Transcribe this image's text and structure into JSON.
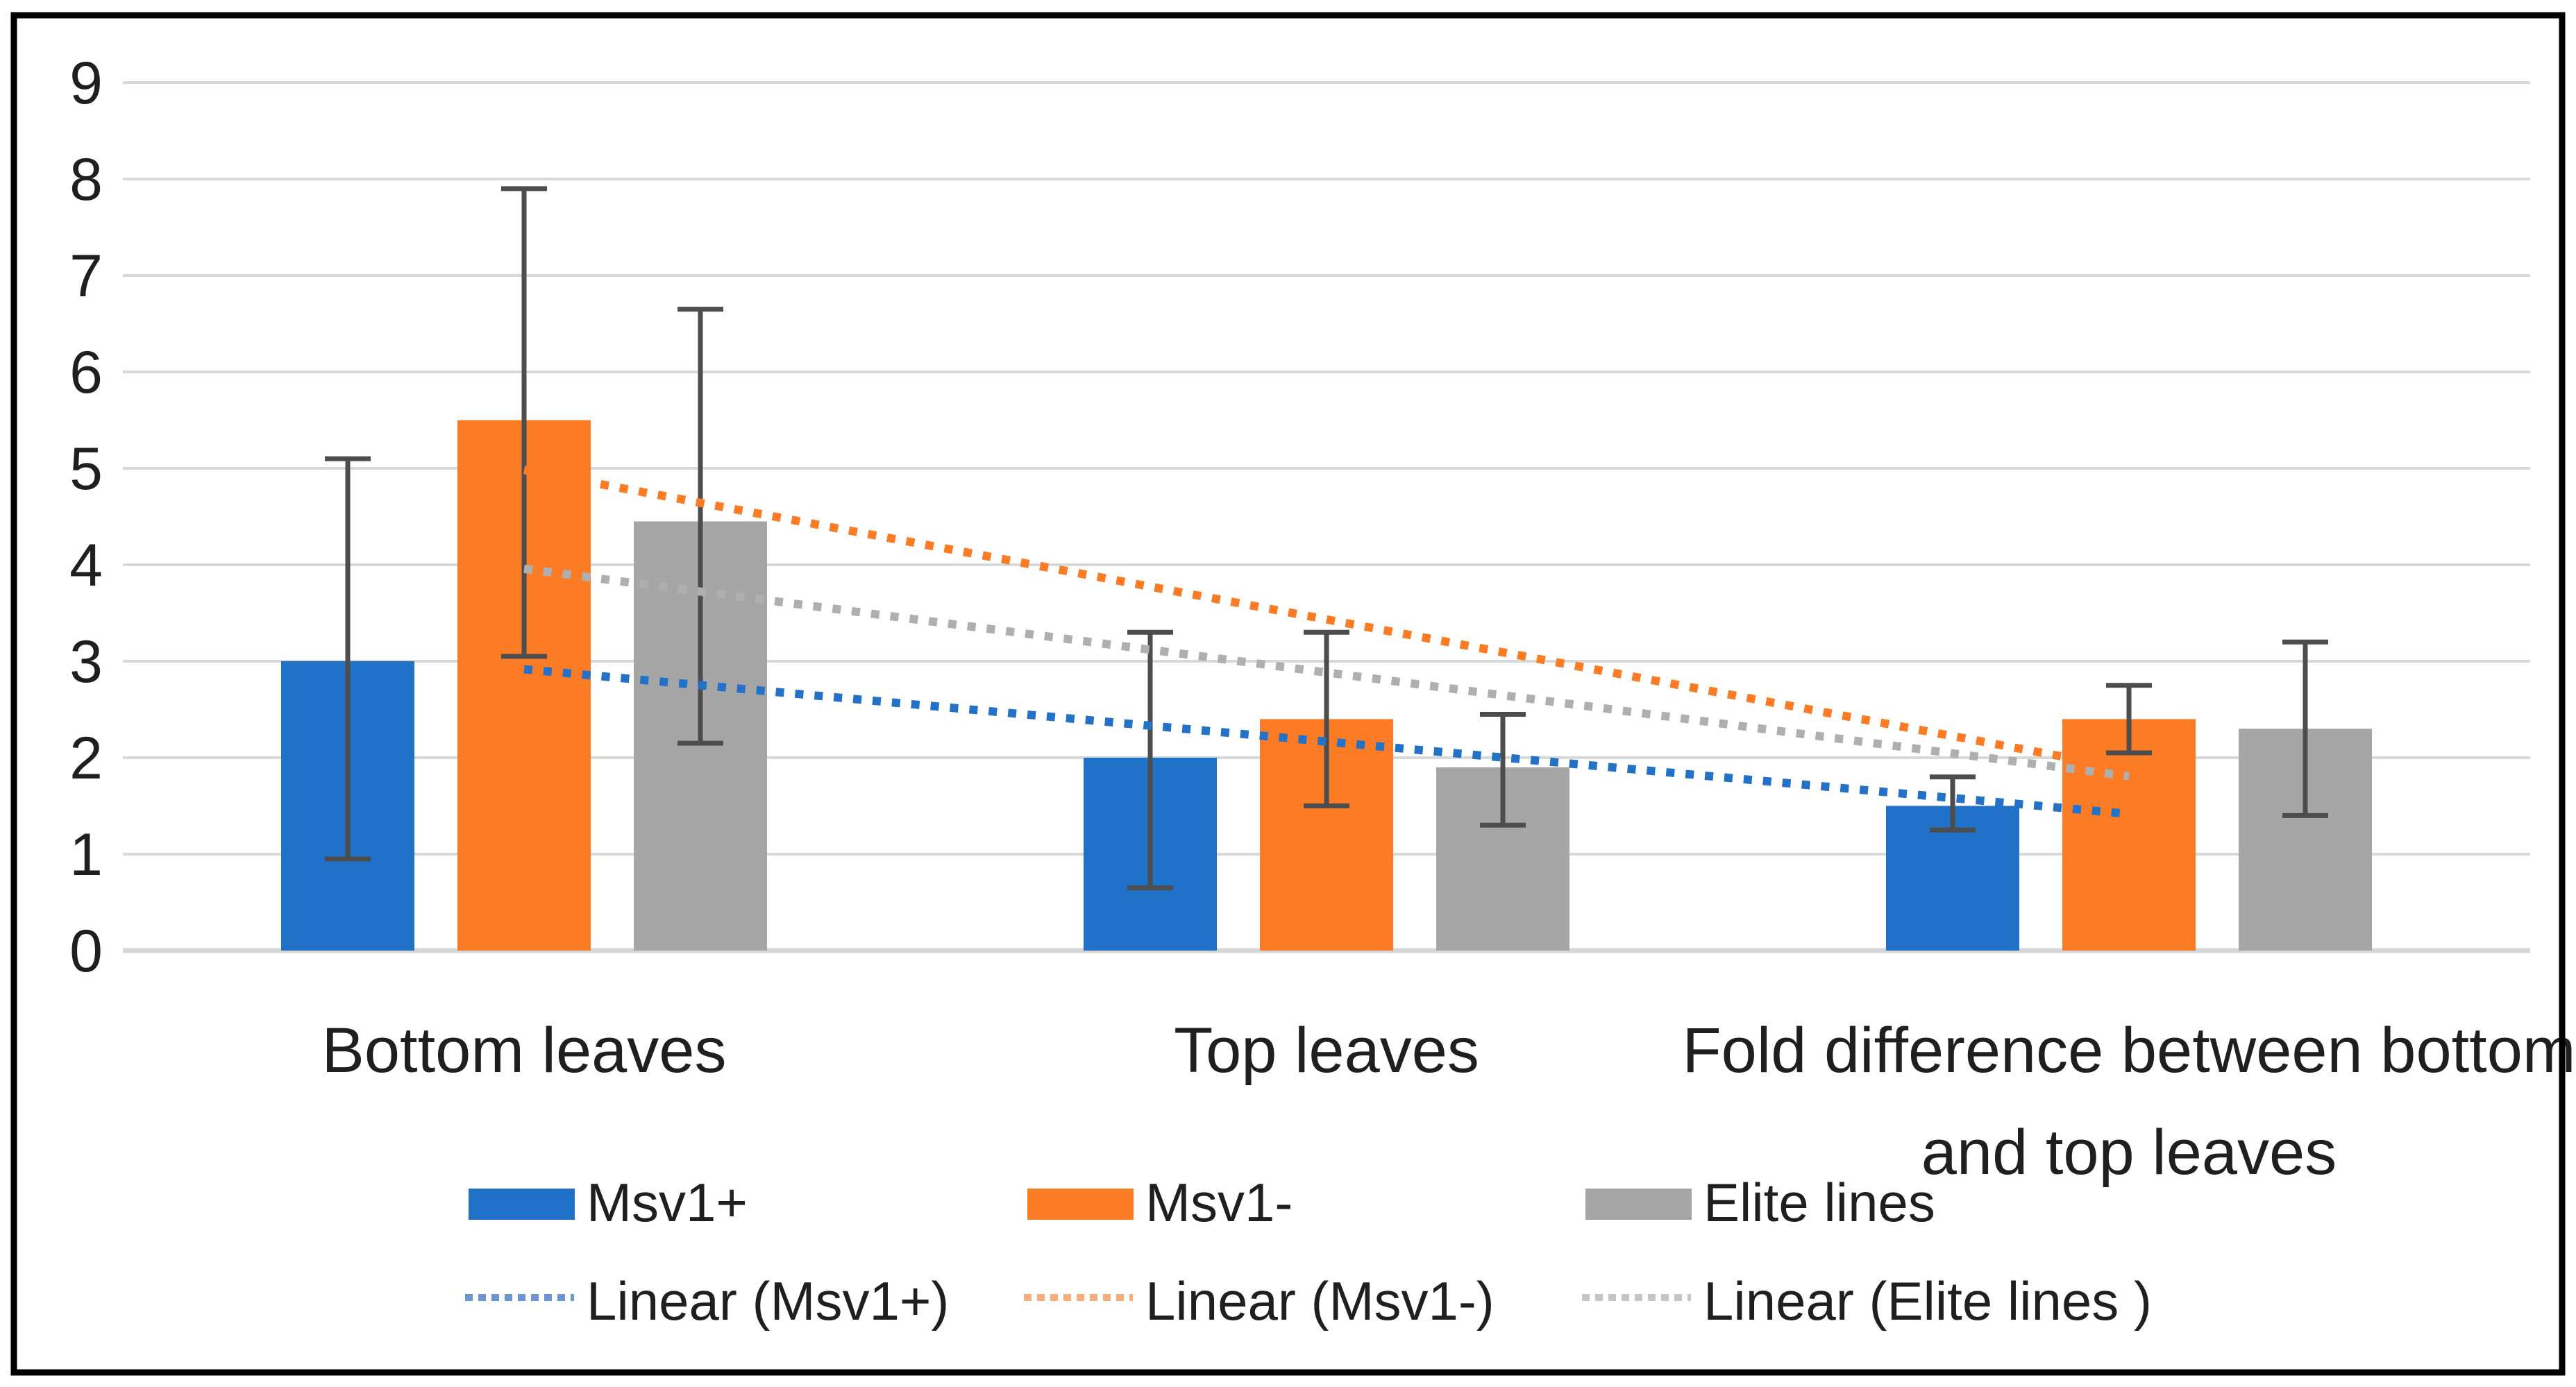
{
  "chart_data": {
    "type": "bar",
    "title": "",
    "xlabel": "",
    "ylabel": "",
    "ylim": [
      0,
      9
    ],
    "ytick_step": 1,
    "ytick_labels": [
      "0",
      "1",
      "2",
      "3",
      "4",
      "5",
      "6",
      "7",
      "8",
      "9"
    ],
    "grid": true,
    "legend_position": "bottom",
    "categories": [
      "Bottom leaves",
      "Top leaves",
      "Fold difference between bottom and top leaves"
    ],
    "category_label_lines": [
      [
        "Bottom leaves"
      ],
      [
        "Top leaves"
      ],
      [
        "Fold difference between bottom",
        "and top leaves"
      ]
    ],
    "series": [
      {
        "name": "Msv1+",
        "color": "#1F72C8",
        "values": [
          3.0,
          2.0,
          1.5
        ],
        "error_low": [
          0.95,
          0.65,
          1.25
        ],
        "error_high": [
          5.1,
          3.3,
          1.8
        ]
      },
      {
        "name": "Msv1-",
        "color": "#FB7C25",
        "values": [
          5.5,
          2.4,
          2.4
        ],
        "error_low": [
          3.05,
          1.5,
          2.05
        ],
        "error_high": [
          7.9,
          3.3,
          2.75
        ]
      },
      {
        "name": "Elite lines",
        "color": "#A6A6A6",
        "values": [
          4.45,
          1.9,
          2.3
        ],
        "error_low": [
          2.15,
          1.3,
          1.4
        ],
        "error_high": [
          6.65,
          2.45,
          3.2
        ]
      }
    ],
    "trendlines": [
      {
        "name": "Linear (Msv1+)",
        "series": "Msv1+",
        "color": "#2472C8",
        "legend_color": "#6C95D4"
      },
      {
        "name": "Linear (Msv1-)",
        "series": "Msv1-",
        "color": "#FB7C25",
        "legend_color": "#F9AD7C"
      },
      {
        "name": "Linear (Elite lines )",
        "series": "Elite lines",
        "color": "#AFAFAF",
        "legend_color": "#C6C6C6"
      }
    ],
    "annotations": []
  },
  "colors": {
    "background": "#FFFFFF",
    "chart_border": "#000000",
    "gridline": "#D9D9D9",
    "axis_line": "#D6D6D6",
    "error_bar": "#4D4D4D",
    "text": "#1F1F1F"
  }
}
